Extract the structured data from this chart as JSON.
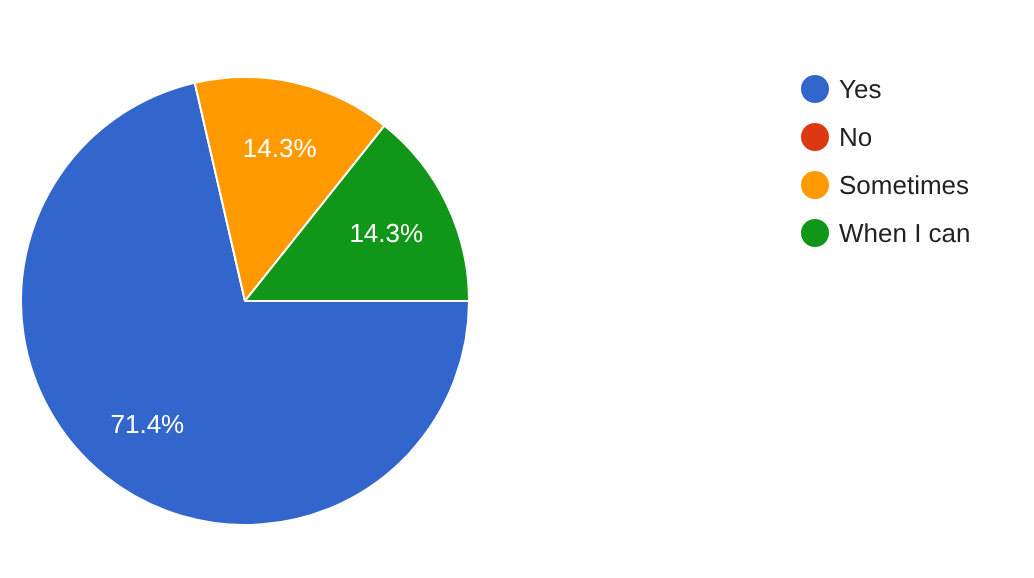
{
  "chart_data": {
    "type": "pie",
    "categories": [
      "Yes",
      "No",
      "Sometimes",
      "When I can"
    ],
    "values": [
      71.4,
      0,
      14.3,
      14.3
    ],
    "colors": [
      "#3366cc",
      "#dc3912",
      "#ff9900",
      "#109618"
    ],
    "value_labels": [
      "71.4%",
      null,
      "14.3%",
      "14.3%"
    ],
    "legend": "right"
  }
}
